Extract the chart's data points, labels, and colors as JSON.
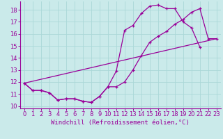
{
  "xlabel": "Windchill (Refroidissement éolien,°C)",
  "background_color": "#caeaea",
  "line_color": "#990099",
  "grid_color": "#aad8d8",
  "xlim": [
    -0.5,
    23.5
  ],
  "ylim": [
    9.8,
    18.7
  ],
  "xticks": [
    0,
    1,
    2,
    3,
    4,
    5,
    6,
    7,
    8,
    9,
    10,
    11,
    12,
    13,
    14,
    15,
    16,
    17,
    18,
    19,
    20,
    21,
    22,
    23
  ],
  "yticks": [
    10,
    11,
    12,
    13,
    14,
    15,
    16,
    17,
    18
  ],
  "series1_x": [
    0,
    1,
    2,
    3,
    4,
    5,
    6,
    7,
    8,
    9,
    10,
    11,
    12,
    13,
    14,
    15,
    16,
    17,
    18,
    19,
    20,
    21
  ],
  "series1_y": [
    11.9,
    11.3,
    11.3,
    11.1,
    10.5,
    10.6,
    10.6,
    10.4,
    10.3,
    10.8,
    11.6,
    12.9,
    16.3,
    16.7,
    17.7,
    18.3,
    18.4,
    18.1,
    18.1,
    17.0,
    16.5,
    14.9
  ],
  "series2_x": [
    0,
    1,
    2,
    3,
    4,
    5,
    6,
    7,
    8,
    9,
    10,
    11,
    12,
    13,
    14,
    15,
    16,
    17,
    18,
    19,
    20,
    21,
    22,
    23
  ],
  "series2_y": [
    11.9,
    11.3,
    11.3,
    11.1,
    10.5,
    10.6,
    10.6,
    10.4,
    10.3,
    10.8,
    11.6,
    11.6,
    12.0,
    13.0,
    14.2,
    15.3,
    15.8,
    16.2,
    16.8,
    17.2,
    17.8,
    18.1,
    15.6,
    15.6
  ],
  "series3_x": [
    0,
    23
  ],
  "series3_y": [
    11.9,
    15.6
  ],
  "tick_fontsize": 6,
  "xlabel_fontsize": 6.5
}
